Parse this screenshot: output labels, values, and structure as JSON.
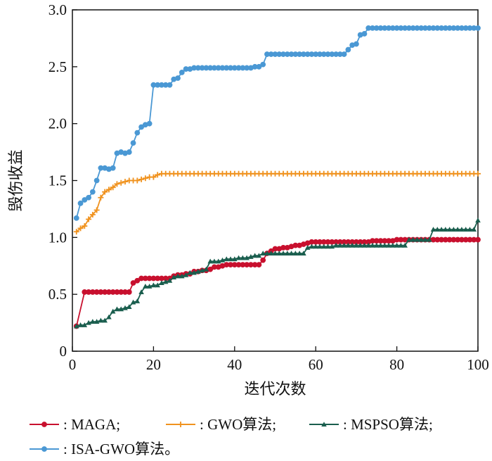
{
  "chart_data": {
    "type": "line",
    "xlabel": "迭代次数",
    "ylabel": "毁伤收益",
    "xlim": [
      0,
      100
    ],
    "ylim": [
      0,
      3.0
    ],
    "x_ticks": [
      "0",
      "20",
      "40",
      "60",
      "80",
      "100"
    ],
    "y_ticks": [
      "0",
      "0.5",
      "1.0",
      "1.5",
      "2.0",
      "2.5",
      "3.0"
    ],
    "grid": false,
    "legend_position": "bottom",
    "series": [
      {
        "name": ": MAGA;",
        "color": "#c8102e",
        "marker": "circle",
        "x": [
          1,
          3,
          4,
          5,
          6,
          7,
          8,
          9,
          10,
          11,
          12,
          13,
          14,
          15,
          16,
          17,
          18,
          19,
          20,
          21,
          22,
          23,
          24,
          25,
          26,
          27,
          28,
          29,
          30,
          31,
          32,
          33,
          34,
          35,
          36,
          37,
          38,
          39,
          40,
          41,
          42,
          43,
          44,
          45,
          46,
          47,
          48,
          49,
          50,
          51,
          52,
          53,
          54,
          55,
          56,
          57,
          58,
          59,
          60,
          61,
          62,
          63,
          64,
          65,
          66,
          67,
          68,
          69,
          70,
          71,
          72,
          73,
          74,
          75,
          76,
          77,
          78,
          79,
          80,
          81,
          82,
          83,
          84,
          85,
          86,
          87,
          88,
          89,
          90,
          91,
          92,
          93,
          94,
          95,
          96,
          97,
          98,
          99,
          100
        ],
        "y": [
          0.22,
          0.52,
          0.52,
          0.52,
          0.52,
          0.52,
          0.52,
          0.52,
          0.52,
          0.52,
          0.52,
          0.52,
          0.52,
          0.6,
          0.62,
          0.64,
          0.64,
          0.64,
          0.64,
          0.64,
          0.64,
          0.64,
          0.64,
          0.66,
          0.67,
          0.67,
          0.68,
          0.68,
          0.7,
          0.7,
          0.71,
          0.71,
          0.72,
          0.74,
          0.74,
          0.75,
          0.76,
          0.76,
          0.76,
          0.76,
          0.76,
          0.76,
          0.76,
          0.76,
          0.76,
          0.8,
          0.86,
          0.88,
          0.9,
          0.9,
          0.91,
          0.91,
          0.92,
          0.93,
          0.93,
          0.94,
          0.95,
          0.96,
          0.96,
          0.96,
          0.96,
          0.96,
          0.96,
          0.96,
          0.96,
          0.96,
          0.96,
          0.96,
          0.96,
          0.96,
          0.96,
          0.96,
          0.97,
          0.97,
          0.97,
          0.97,
          0.97,
          0.97,
          0.98,
          0.98,
          0.98,
          0.98,
          0.98,
          0.98,
          0.98,
          0.98,
          0.98,
          0.98,
          0.98,
          0.98,
          0.98,
          0.98,
          0.98,
          0.98,
          0.98,
          0.98,
          0.98,
          0.98,
          0.98
        ]
      },
      {
        "name": ": GWO算法;",
        "color": "#f0921e",
        "marker": "plus",
        "x": [
          1,
          2,
          3,
          4,
          5,
          6,
          7,
          8,
          9,
          10,
          11,
          12,
          13,
          14,
          15,
          16,
          17,
          18,
          19,
          20,
          21,
          22,
          23,
          24,
          25,
          26,
          27,
          28,
          29,
          30,
          31,
          32,
          33,
          34,
          35,
          36,
          37,
          38,
          39,
          40,
          41,
          42,
          43,
          44,
          45,
          46,
          47,
          48,
          49,
          50,
          51,
          52,
          53,
          54,
          55,
          56,
          57,
          58,
          59,
          60,
          61,
          62,
          63,
          64,
          65,
          66,
          67,
          68,
          69,
          70,
          71,
          72,
          73,
          74,
          75,
          76,
          77,
          78,
          79,
          80,
          81,
          82,
          83,
          84,
          85,
          86,
          87,
          88,
          89,
          90,
          91,
          92,
          93,
          94,
          95,
          96,
          97,
          98,
          99,
          100
        ],
        "y": [
          1.05,
          1.08,
          1.1,
          1.16,
          1.2,
          1.24,
          1.35,
          1.4,
          1.42,
          1.44,
          1.47,
          1.48,
          1.49,
          1.5,
          1.5,
          1.5,
          1.51,
          1.52,
          1.53,
          1.53,
          1.55,
          1.56,
          1.56,
          1.56,
          1.56,
          1.56,
          1.56,
          1.56,
          1.56,
          1.56,
          1.56,
          1.56,
          1.56,
          1.56,
          1.56,
          1.56,
          1.56,
          1.56,
          1.56,
          1.56,
          1.56,
          1.56,
          1.56,
          1.56,
          1.56,
          1.56,
          1.56,
          1.56,
          1.56,
          1.56,
          1.56,
          1.56,
          1.56,
          1.56,
          1.56,
          1.56,
          1.56,
          1.56,
          1.56,
          1.56,
          1.56,
          1.56,
          1.56,
          1.56,
          1.56,
          1.56,
          1.56,
          1.56,
          1.56,
          1.56,
          1.56,
          1.56,
          1.56,
          1.56,
          1.56,
          1.56,
          1.56,
          1.56,
          1.56,
          1.56,
          1.56,
          1.56,
          1.56,
          1.56,
          1.56,
          1.56,
          1.56,
          1.56,
          1.56,
          1.56,
          1.56,
          1.56,
          1.56,
          1.56,
          1.56,
          1.56,
          1.56,
          1.56,
          1.56,
          1.56
        ]
      },
      {
        "name": ": MSPSO算法;",
        "color": "#1a5e4e",
        "marker": "triangle",
        "x": [
          1,
          2,
          3,
          4,
          5,
          6,
          7,
          8,
          9,
          10,
          11,
          12,
          13,
          14,
          15,
          16,
          17,
          18,
          19,
          20,
          21,
          22,
          23,
          24,
          25,
          26,
          27,
          28,
          29,
          30,
          31,
          32,
          33,
          34,
          35,
          36,
          37,
          38,
          39,
          40,
          41,
          42,
          43,
          44,
          45,
          46,
          47,
          48,
          49,
          50,
          51,
          52,
          53,
          54,
          55,
          56,
          57,
          58,
          59,
          60,
          61,
          62,
          63,
          64,
          65,
          66,
          67,
          68,
          69,
          70,
          71,
          72,
          73,
          74,
          75,
          76,
          77,
          78,
          79,
          80,
          81,
          82,
          83,
          84,
          85,
          86,
          87,
          88,
          89,
          90,
          91,
          92,
          93,
          94,
          95,
          96,
          97,
          98,
          99,
          100
        ],
        "y": [
          0.22,
          0.23,
          0.23,
          0.25,
          0.26,
          0.26,
          0.27,
          0.27,
          0.3,
          0.35,
          0.37,
          0.37,
          0.38,
          0.39,
          0.43,
          0.44,
          0.52,
          0.57,
          0.57,
          0.58,
          0.58,
          0.6,
          0.61,
          0.62,
          0.65,
          0.66,
          0.66,
          0.67,
          0.69,
          0.69,
          0.7,
          0.71,
          0.72,
          0.79,
          0.79,
          0.79,
          0.8,
          0.81,
          0.81,
          0.81,
          0.82,
          0.82,
          0.82,
          0.83,
          0.84,
          0.84,
          0.86,
          0.86,
          0.86,
          0.86,
          0.86,
          0.86,
          0.86,
          0.86,
          0.86,
          0.86,
          0.86,
          0.91,
          0.92,
          0.92,
          0.92,
          0.92,
          0.92,
          0.92,
          0.93,
          0.93,
          0.93,
          0.93,
          0.93,
          0.93,
          0.93,
          0.93,
          0.93,
          0.93,
          0.93,
          0.93,
          0.93,
          0.93,
          0.93,
          0.93,
          0.93,
          0.93,
          0.98,
          0.98,
          0.98,
          0.98,
          0.98,
          0.98,
          1.07,
          1.07,
          1.07,
          1.07,
          1.07,
          1.07,
          1.07,
          1.07,
          1.07,
          1.07,
          1.07,
          1.15
        ]
      },
      {
        "name": ": ISA-GWO算法。",
        "color": "#4a98d4",
        "marker": "circle",
        "x": [
          1,
          2,
          3,
          4,
          5,
          6,
          7,
          8,
          9,
          10,
          11,
          12,
          13,
          14,
          15,
          16,
          17,
          18,
          19,
          20,
          21,
          22,
          23,
          24,
          25,
          26,
          27,
          28,
          29,
          30,
          31,
          32,
          33,
          34,
          35,
          36,
          37,
          38,
          39,
          40,
          41,
          42,
          43,
          44,
          45,
          46,
          47,
          48,
          49,
          50,
          51,
          52,
          53,
          54,
          55,
          56,
          57,
          58,
          59,
          60,
          61,
          62,
          63,
          64,
          65,
          66,
          67,
          68,
          69,
          70,
          71,
          72,
          73,
          74,
          75,
          76,
          77,
          78,
          79,
          80,
          81,
          82,
          83,
          84,
          85,
          86,
          87,
          88,
          89,
          90,
          91,
          92,
          93,
          94,
          95,
          96,
          97,
          98,
          99,
          100
        ],
        "y": [
          1.17,
          1.3,
          1.33,
          1.35,
          1.4,
          1.5,
          1.61,
          1.61,
          1.6,
          1.61,
          1.74,
          1.75,
          1.74,
          1.75,
          1.83,
          1.92,
          1.97,
          1.99,
          2.0,
          2.34,
          2.34,
          2.34,
          2.34,
          2.34,
          2.39,
          2.4,
          2.45,
          2.48,
          2.48,
          2.49,
          2.49,
          2.49,
          2.49,
          2.49,
          2.49,
          2.49,
          2.49,
          2.49,
          2.49,
          2.49,
          2.49,
          2.49,
          2.49,
          2.49,
          2.5,
          2.5,
          2.52,
          2.61,
          2.61,
          2.61,
          2.61,
          2.61,
          2.61,
          2.61,
          2.61,
          2.61,
          2.61,
          2.61,
          2.61,
          2.61,
          2.61,
          2.61,
          2.61,
          2.61,
          2.61,
          2.61,
          2.61,
          2.65,
          2.69,
          2.7,
          2.78,
          2.79,
          2.84,
          2.84,
          2.84,
          2.84,
          2.84,
          2.84,
          2.84,
          2.84,
          2.84,
          2.84,
          2.84,
          2.84,
          2.84,
          2.84,
          2.84,
          2.84,
          2.84,
          2.84,
          2.84,
          2.84,
          2.84,
          2.84,
          2.84,
          2.84,
          2.84,
          2.84,
          2.84,
          2.84
        ]
      }
    ]
  }
}
